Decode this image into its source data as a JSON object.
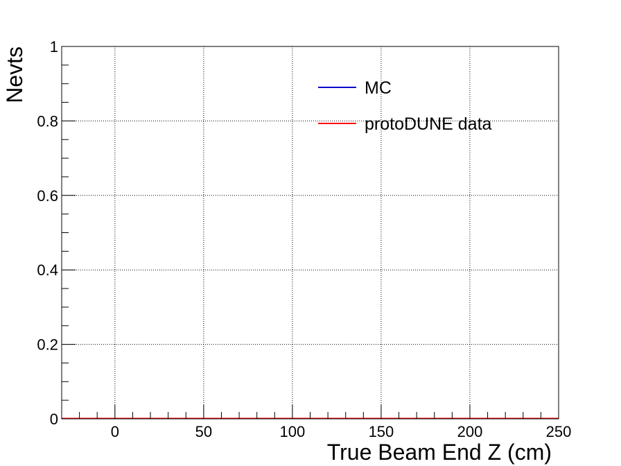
{
  "chart_data": {
    "type": "line",
    "title": "",
    "xlabel": "True Beam End Z (cm)",
    "ylabel": "Nevts",
    "xlim": [
      -30,
      250
    ],
    "ylim": [
      0,
      1
    ],
    "grid": true,
    "legend_position": "top-right",
    "x_ticks": [
      0,
      50,
      100,
      150,
      200,
      250
    ],
    "y_ticks": [
      0,
      0.2,
      0.4,
      0.6,
      0.8,
      1
    ],
    "x_tick_labels": [
      "0",
      "50",
      "100",
      "150",
      "200",
      "250"
    ],
    "y_tick_labels": [
      "0",
      "0.2",
      "0.4",
      "0.6",
      "0.8",
      "1"
    ],
    "series": [
      {
        "name": "MC",
        "color": "#0000cc",
        "x": [
          -30,
          250
        ],
        "y": [
          0,
          0
        ]
      },
      {
        "name": "protoDUNE data",
        "color": "#ff0000",
        "x": [
          -30,
          250
        ],
        "y": [
          0,
          0
        ]
      }
    ]
  }
}
